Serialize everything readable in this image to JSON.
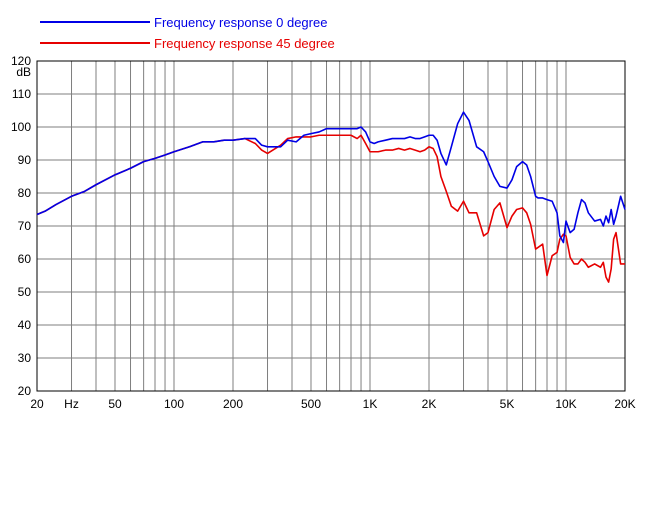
{
  "chart_data": {
    "type": "line",
    "title": "",
    "xlabel": "",
    "ylabel": "dB",
    "x_scale": "log",
    "xlim": [
      20,
      20000
    ],
    "ylim": [
      20,
      120
    ],
    "grid": true,
    "legend_position": "top-left",
    "x_tick_labels": [
      {
        "value": 20,
        "label": "20"
      },
      {
        "value": 30,
        "label": "Hz"
      },
      {
        "value": 50,
        "label": "50"
      },
      {
        "value": 100,
        "label": "100"
      },
      {
        "value": 200,
        "label": "200"
      },
      {
        "value": 500,
        "label": "500"
      },
      {
        "value": 1000,
        "label": "1K"
      },
      {
        "value": 2000,
        "label": "2K"
      },
      {
        "value": 5000,
        "label": "5K"
      },
      {
        "value": 10000,
        "label": "10K"
      },
      {
        "value": 20000,
        "label": "20K"
      }
    ],
    "y_ticks": [
      20,
      30,
      40,
      50,
      60,
      70,
      80,
      90,
      100,
      110,
      120
    ],
    "x_grid_lines": [
      20,
      30,
      40,
      50,
      60,
      70,
      80,
      90,
      100,
      200,
      300,
      400,
      500,
      600,
      700,
      800,
      900,
      1000,
      2000,
      3000,
      4000,
      5000,
      6000,
      7000,
      8000,
      9000,
      10000,
      20000
    ],
    "series": [
      {
        "name": "Frequency response 0 degree",
        "color": "#0000e6",
        "x": [
          20,
          22,
          25,
          30,
          35,
          40,
          50,
          60,
          70,
          80,
          90,
          100,
          120,
          140,
          160,
          180,
          200,
          230,
          260,
          280,
          300,
          350,
          380,
          420,
          460,
          500,
          550,
          600,
          650,
          700,
          750,
          800,
          860,
          900,
          950,
          1000,
          1050,
          1100,
          1200,
          1300,
          1400,
          1500,
          1600,
          1700,
          1800,
          1900,
          2000,
          2100,
          2200,
          2300,
          2450,
          2600,
          2800,
          3000,
          3200,
          3500,
          3800,
          4000,
          4300,
          4600,
          5000,
          5300,
          5600,
          6000,
          6300,
          6600,
          7000,
          7200,
          7600,
          8000,
          8500,
          9000,
          9300,
          9700,
          10000,
          10500,
          11000,
          11500,
          12000,
          12500,
          13000,
          14000,
          15000,
          15500,
          16000,
          16500,
          17000,
          17500,
          18000,
          19000,
          20000
        ],
        "y": [
          73.5,
          74.5,
          76.5,
          79,
          80.5,
          82.5,
          85.5,
          87.5,
          89.5,
          90.5,
          91.5,
          92.5,
          94,
          95.5,
          95.5,
          96,
          96,
          96.5,
          96.5,
          94.5,
          94,
          94,
          96,
          95.5,
          97.5,
          98,
          98.5,
          99.5,
          99.5,
          99.5,
          99.5,
          99.5,
          99.5,
          100,
          98.5,
          95.5,
          95,
          95.5,
          96,
          96.5,
          96.5,
          96.5,
          97,
          96.5,
          96.5,
          97,
          97.5,
          97.5,
          96,
          92,
          88.5,
          94,
          101,
          104.5,
          102,
          94,
          92.5,
          89.5,
          85,
          82,
          81.5,
          84,
          88,
          89.5,
          88.5,
          85,
          79,
          78.5,
          78.5,
          78,
          77.5,
          74,
          67,
          65,
          71.5,
          68,
          69,
          74,
          78,
          77,
          74,
          71.5,
          72,
          70,
          73,
          71,
          75,
          70.5,
          73,
          79,
          75
        ]
      },
      {
        "name": "Frequency response 45 degree",
        "color": "#e60000",
        "x": [
          20,
          22,
          25,
          30,
          35,
          40,
          50,
          60,
          70,
          80,
          90,
          100,
          120,
          140,
          160,
          180,
          200,
          230,
          260,
          280,
          300,
          350,
          380,
          420,
          460,
          500,
          550,
          600,
          650,
          700,
          750,
          800,
          860,
          900,
          950,
          1000,
          1050,
          1100,
          1200,
          1300,
          1400,
          1500,
          1600,
          1700,
          1800,
          1900,
          2000,
          2100,
          2200,
          2300,
          2450,
          2600,
          2800,
          3000,
          3200,
          3500,
          3800,
          4000,
          4300,
          4600,
          5000,
          5300,
          5600,
          6000,
          6300,
          6600,
          7000,
          7200,
          7600,
          8000,
          8500,
          9000,
          9300,
          9700,
          10000,
          10500,
          11000,
          11500,
          12000,
          12500,
          13000,
          14000,
          15000,
          15500,
          16000,
          16500,
          17000,
          17500,
          18000,
          19000,
          20000
        ],
        "y": [
          73.5,
          74.5,
          76.5,
          79,
          80.5,
          82.5,
          85.5,
          87.5,
          89.5,
          90.5,
          91.5,
          92.5,
          94,
          95.5,
          95.5,
          96,
          96,
          96.5,
          95,
          93,
          92,
          94.5,
          96.5,
          97,
          97,
          97,
          97.5,
          97.5,
          97.5,
          97.5,
          97.5,
          97.5,
          96.5,
          97.5,
          95,
          92.5,
          92.5,
          92.5,
          93,
          93,
          93.5,
          93,
          93.5,
          93,
          92.5,
          93,
          94,
          93.5,
          91,
          85,
          80.5,
          76,
          74.5,
          77.5,
          74,
          74,
          67,
          68,
          75,
          77,
          69.5,
          73,
          75,
          75.5,
          74,
          70.5,
          63,
          63.5,
          64.5,
          55,
          61,
          62,
          66,
          67.5,
          67,
          60.5,
          58.5,
          58.5,
          60,
          59,
          57.5,
          58.5,
          57.5,
          59,
          54.5,
          53,
          57,
          66,
          68,
          58.5,
          58.5
        ]
      }
    ]
  }
}
